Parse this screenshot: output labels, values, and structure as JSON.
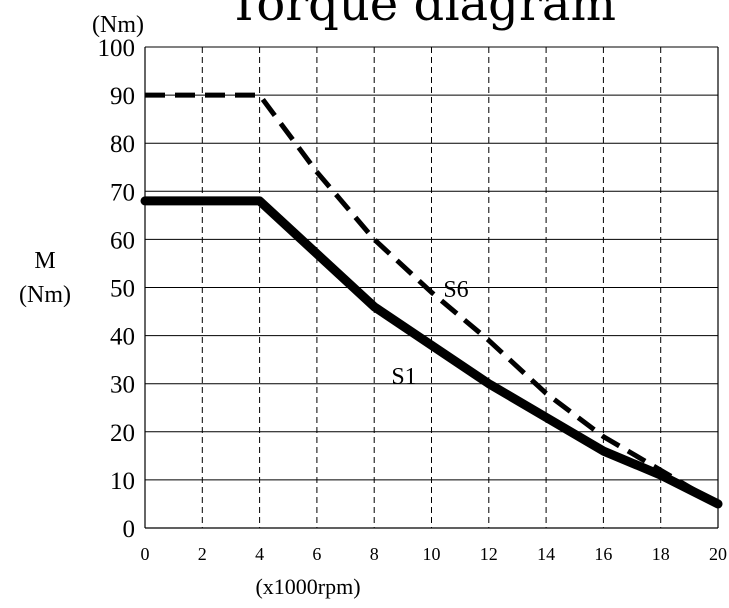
{
  "chart_data": {
    "type": "line",
    "title": "Torque diagram",
    "unit_top": "(Nm)",
    "ylabel_line1": "M",
    "ylabel_line2": "(Nm)",
    "xlabel": "(x1000rpm)",
    "xlim": [
      0,
      20
    ],
    "ylim": [
      0,
      100
    ],
    "x_ticks": [
      0,
      2,
      4,
      6,
      8,
      10,
      12,
      14,
      16,
      18,
      20
    ],
    "y_ticks": [
      0,
      10,
      20,
      30,
      40,
      50,
      60,
      70,
      80,
      90,
      100
    ],
    "vertical_grid": "dashed",
    "horizontal_grid": "solid",
    "series": [
      {
        "name": "S6",
        "style": "dashed",
        "x": [
          0,
          4,
          6,
          8,
          10,
          12,
          14,
          16,
          18,
          20
        ],
        "y": [
          90,
          90,
          74,
          60,
          49,
          39,
          28,
          19,
          12,
          5
        ]
      },
      {
        "name": "S1",
        "style": "solid",
        "x": [
          0,
          4,
          6,
          8,
          10,
          12,
          14,
          16,
          18,
          20
        ],
        "y": [
          68,
          68,
          57,
          46,
          38,
          30,
          23,
          16,
          11,
          5
        ]
      }
    ]
  }
}
